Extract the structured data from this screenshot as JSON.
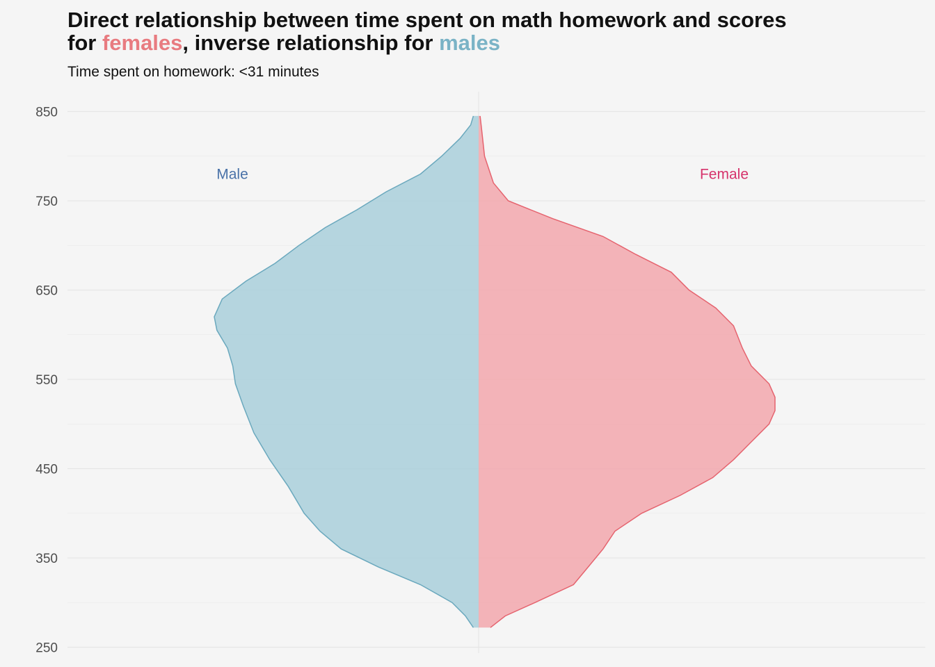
{
  "title": {
    "line1": "Direct relationship between time spent on math homework and scores",
    "line2_prefix": "for ",
    "line2_female": "females",
    "line2_middle": ", inverse relationship for ",
    "line2_male": "males"
  },
  "subtitle": "Time spent on homework: <31 minutes",
  "colors": {
    "male_fill": "#a9cfda",
    "male_line": "#6aa8bd",
    "female_fill": "#f2a7ad",
    "female_line": "#e5636e",
    "male_label": "#4a72a8",
    "female_label": "#d6336c",
    "grid": "#e6e6e6"
  },
  "chart_data": {
    "type": "area",
    "subtype": "split-violin",
    "title": "Direct relationship between time spent on math homework and scores for females, inverse relationship for males",
    "subtitle": "Time spent on homework: <31 minutes",
    "ylim": [
      250,
      860
    ],
    "yticks": [
      "850",
      "750",
      "650",
      "550",
      "450",
      "350",
      "250"
    ],
    "grid": true,
    "groups": [
      {
        "name": "Male",
        "side": "left",
        "density": [
          [
            272,
            0.02
          ],
          [
            285,
            0.05
          ],
          [
            300,
            0.1
          ],
          [
            320,
            0.22
          ],
          [
            340,
            0.38
          ],
          [
            360,
            0.52
          ],
          [
            380,
            0.6
          ],
          [
            400,
            0.66
          ],
          [
            430,
            0.72
          ],
          [
            460,
            0.79
          ],
          [
            490,
            0.85
          ],
          [
            520,
            0.89
          ],
          [
            545,
            0.92
          ],
          [
            565,
            0.93
          ],
          [
            585,
            0.95
          ],
          [
            605,
            0.99
          ],
          [
            620,
            1.0
          ],
          [
            640,
            0.97
          ],
          [
            660,
            0.88
          ],
          [
            680,
            0.77
          ],
          [
            700,
            0.68
          ],
          [
            720,
            0.58
          ],
          [
            740,
            0.46
          ],
          [
            760,
            0.35
          ],
          [
            780,
            0.22
          ],
          [
            800,
            0.14
          ],
          [
            820,
            0.07
          ],
          [
            835,
            0.03
          ],
          [
            845,
            0.02
          ]
        ]
      },
      {
        "name": "Female",
        "side": "right",
        "density": [
          [
            272,
            0.04
          ],
          [
            285,
            0.09
          ],
          [
            300,
            0.19
          ],
          [
            320,
            0.32
          ],
          [
            340,
            0.37
          ],
          [
            360,
            0.42
          ],
          [
            380,
            0.46
          ],
          [
            400,
            0.55
          ],
          [
            420,
            0.68
          ],
          [
            440,
            0.79
          ],
          [
            460,
            0.86
          ],
          [
            480,
            0.92
          ],
          [
            500,
            0.98
          ],
          [
            515,
            1.0
          ],
          [
            530,
            1.0
          ],
          [
            545,
            0.98
          ],
          [
            565,
            0.92
          ],
          [
            585,
            0.89
          ],
          [
            610,
            0.86
          ],
          [
            630,
            0.8
          ],
          [
            650,
            0.71
          ],
          [
            670,
            0.65
          ],
          [
            690,
            0.53
          ],
          [
            710,
            0.42
          ],
          [
            730,
            0.25
          ],
          [
            750,
            0.1
          ],
          [
            770,
            0.05
          ],
          [
            800,
            0.02
          ],
          [
            830,
            0.01
          ],
          [
            845,
            0.005
          ]
        ]
      }
    ]
  }
}
